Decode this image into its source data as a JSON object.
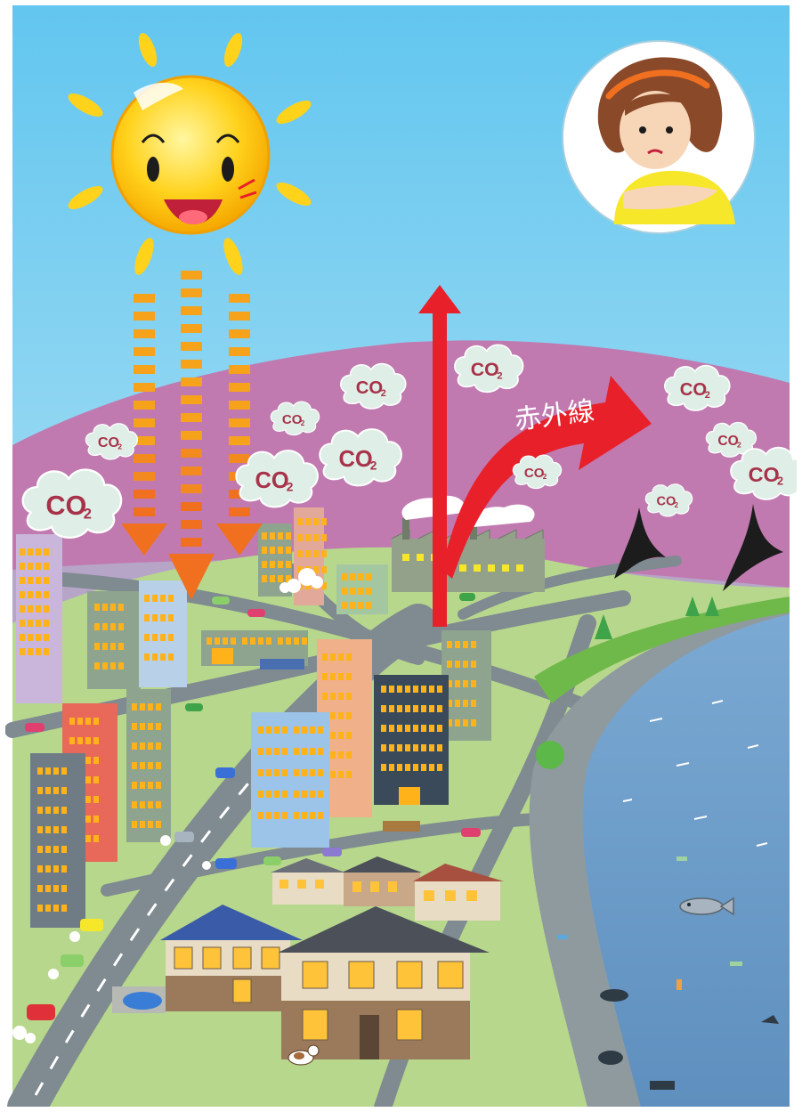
{
  "labels": {
    "co2_main": "CO",
    "co2_sub": "2",
    "infrared": "赤外線"
  },
  "colors": {
    "sky_top": "#62c6ef",
    "sky_bottom": "#d4eef7",
    "hills": "#c07ab0",
    "ground": "#b7d78c",
    "road": "#7f8a91",
    "sea": "#6f9ec9",
    "sun": "#ffd21c",
    "sun_rays": "#f7a21b",
    "arrow_red": "#e8202a",
    "cloud": "#dfeee6",
    "co2_text": "#a8324a"
  },
  "icons": [
    "sun-icon",
    "girl-hot-icon",
    "bird-icon",
    "factory-icon",
    "house-icon",
    "car-icon",
    "fish-icon"
  ]
}
